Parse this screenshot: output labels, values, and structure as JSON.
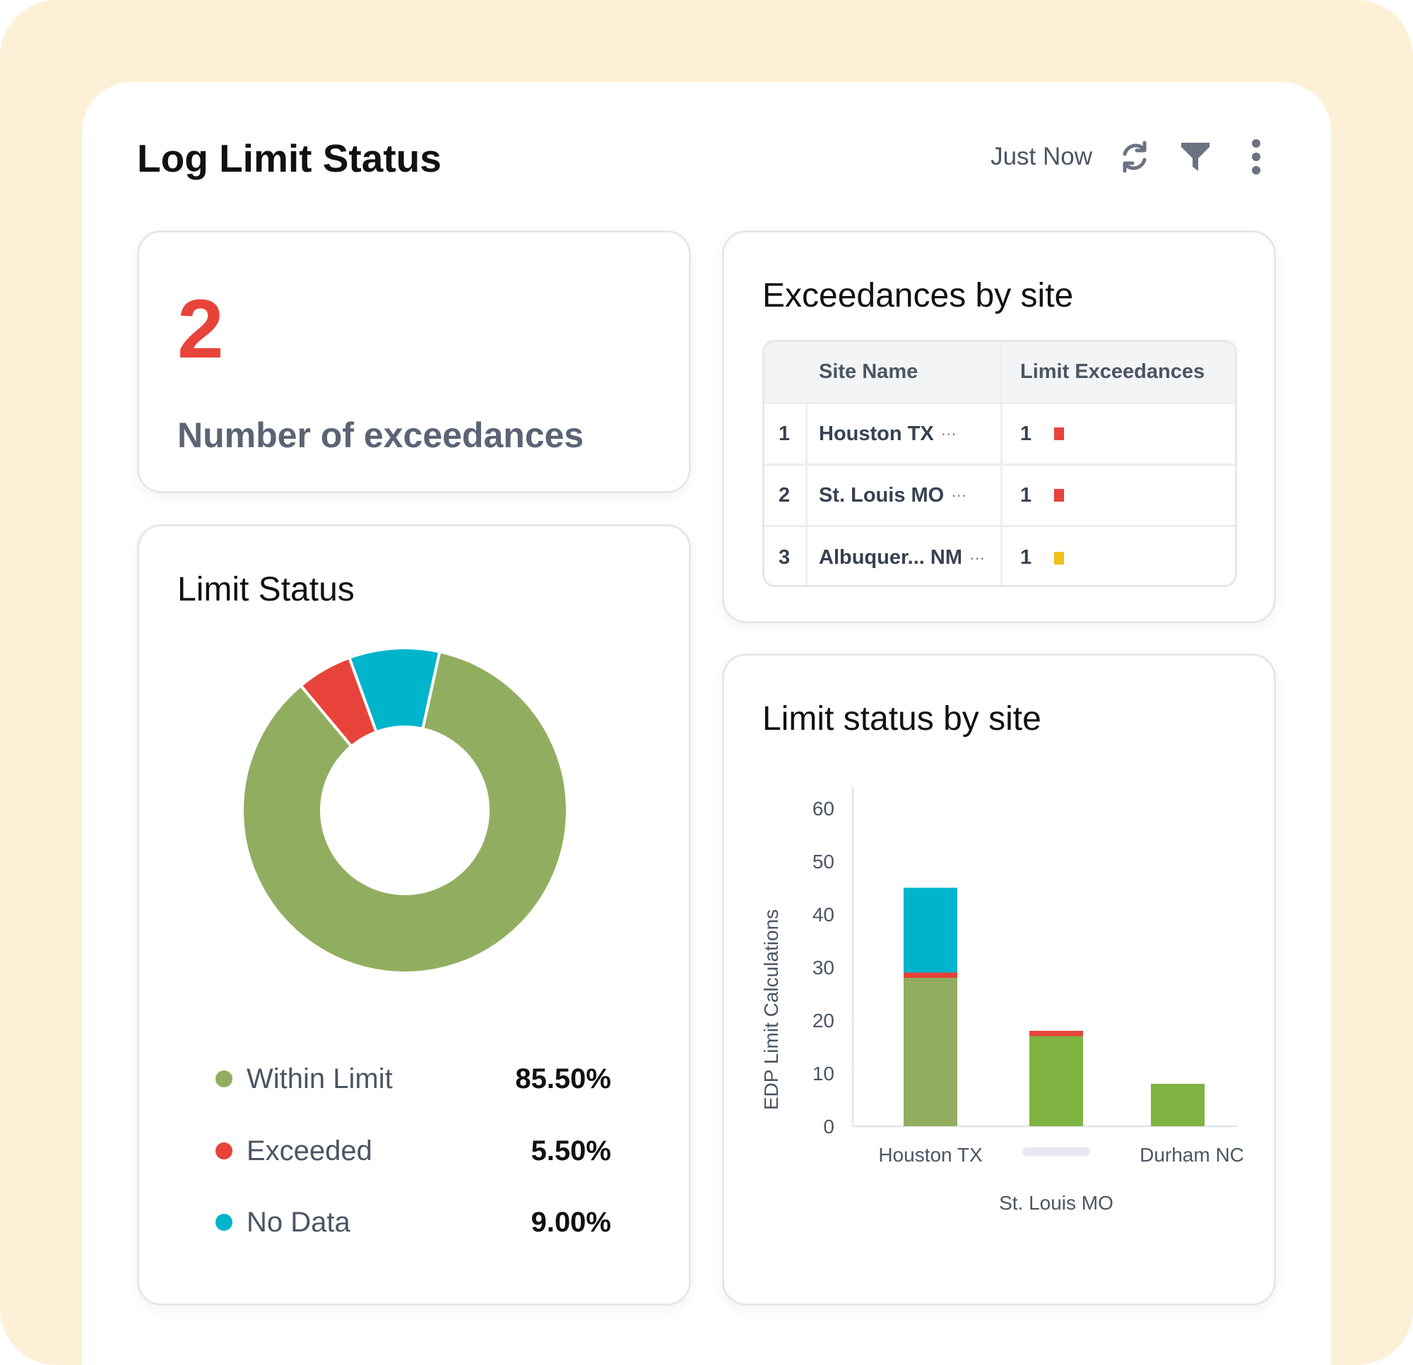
{
  "header": {
    "title": "Log Limit Status",
    "refresh_label": "Just Now",
    "icons": [
      "refresh-icon",
      "filter-icon",
      "more-vertical-icon"
    ]
  },
  "kpi": {
    "value": "2",
    "label": "Number of exceedances"
  },
  "exceedances_table": {
    "title": "Exceedances by site",
    "columns": [
      "Site Name",
      "Limit Exceedances"
    ],
    "rows": [
      {
        "index": "1",
        "site": "Houston TX",
        "count": "1",
        "flag_color": "#e8433a"
      },
      {
        "index": "2",
        "site": "St. Louis MO",
        "count": "1",
        "flag_color": "#e8433a"
      },
      {
        "index": "3",
        "site": "Albuquer... NM",
        "count": "1",
        "flag_color": "#f2c01b"
      }
    ],
    "ellipsis": "···"
  },
  "limit_status": {
    "title": "Limit Status",
    "legend": [
      {
        "label": "Within Limit",
        "pct": "85.50%",
        "color": "#91ae60"
      },
      {
        "label": "Exceeded",
        "pct": "5.50%",
        "color": "#e8433a"
      },
      {
        "label": "No Data",
        "pct": "9.00%",
        "color": "#00b4cc"
      }
    ]
  },
  "limit_by_site": {
    "title": "Limit status by site"
  },
  "colors": {
    "within": "#91ae60",
    "within_alt": "#7fb342",
    "exceeded": "#e8433a",
    "no_data": "#00b4cc",
    "warning": "#f2c01b"
  },
  "chart_data": [
    {
      "type": "pie",
      "title": "Limit Status",
      "categories": [
        "Within Limit",
        "Exceeded",
        "No Data"
      ],
      "values": [
        85.5,
        5.5,
        9.0
      ],
      "colors": [
        "#91ae60",
        "#e8433a",
        "#00b4cc"
      ]
    },
    {
      "type": "bar",
      "title": "Limit status by site",
      "categories": [
        "Houston TX",
        "St. Louis MO",
        "Durham NC"
      ],
      "ylabel": "EDP Limit Calculations",
      "ylim": [
        0,
        60
      ],
      "yticks": [
        0,
        10,
        20,
        30,
        40,
        50,
        60
      ],
      "stacked": true,
      "series": [
        {
          "values": [
            28,
            17,
            8
          ],
          "colors": [
            "#91ae60",
            "#7fb342",
            "#7fb342"
          ]
        },
        {
          "values": [
            1,
            1,
            0
          ],
          "color": "#e8433a"
        },
        {
          "values": [
            16,
            0,
            0
          ],
          "color": "#00b4cc"
        }
      ]
    }
  ]
}
